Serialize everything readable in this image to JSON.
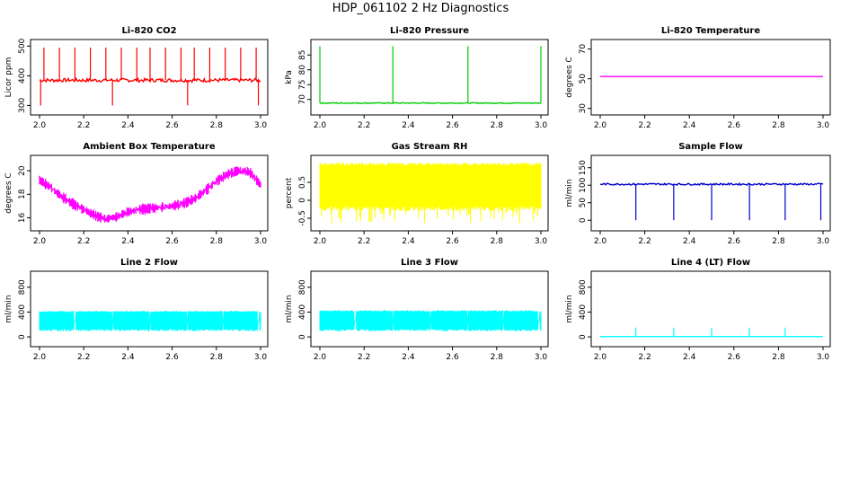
{
  "figure": {
    "title": "HDP_061102 2 Hz Diagnostics"
  },
  "chart_data": [
    {
      "type": "line",
      "title": "Li-820 CO2",
      "ylabel": "Licor ppm",
      "color": "#ff0000",
      "x_ticks": [
        "2.0",
        "2.2",
        "2.4",
        "2.6",
        "2.8",
        "3.0"
      ],
      "xlim": [
        2.0,
        3.0
      ],
      "ylim": [
        280,
        510
      ],
      "y_ticks": [
        300,
        400,
        500
      ],
      "baseline": 385,
      "noise": 6,
      "spikes_up": [
        2.02,
        2.09,
        2.16,
        2.23,
        2.3,
        2.37,
        2.44,
        2.5,
        2.57,
        2.64,
        2.7,
        2.77,
        2.84,
        2.91,
        2.98
      ],
      "spike_up_value": 495,
      "spikes_down": [
        2.005,
        2.33,
        2.67,
        2.99
      ],
      "spike_down_value": 300
    },
    {
      "type": "line",
      "title": "Li-820 Pressure",
      "ylabel": "kPa",
      "color": "#00cc00",
      "x_ticks": [
        "2.0",
        "2.2",
        "2.4",
        "2.6",
        "2.8",
        "3.0"
      ],
      "xlim": [
        2.0,
        3.0
      ],
      "ylim": [
        66,
        89
      ],
      "y_ticks": [
        70,
        75,
        80,
        85
      ],
      "baseline": 68.8,
      "noise": 0.15,
      "spikes_up": [
        2.0,
        2.33,
        2.67,
        3.0
      ],
      "spike_up_value": 88
    },
    {
      "type": "line",
      "title": "Li-820 Temperature",
      "ylabel": "degrees C",
      "color": "#ff00ff",
      "x_ticks": [
        "2.0",
        "2.2",
        "2.4",
        "2.6",
        "2.8",
        "3.0"
      ],
      "xlim": [
        2.0,
        3.0
      ],
      "ylim": [
        28,
        74
      ],
      "y_ticks": [
        30,
        50,
        70
      ],
      "baseline": 51.5,
      "noise": 0
    },
    {
      "type": "line",
      "title": "Ambient Box Temperature",
      "ylabel": "degrees C",
      "color": "#ff00ff",
      "x_ticks": [
        "2.0",
        "2.2",
        "2.4",
        "2.6",
        "2.8",
        "3.0"
      ],
      "xlim": [
        2.0,
        3.0
      ],
      "ylim": [
        15.2,
        21
      ],
      "y_ticks": [
        16,
        18,
        20
      ],
      "curve_x": [
        2.0,
        2.05,
        2.1,
        2.15,
        2.2,
        2.25,
        2.3,
        2.35,
        2.4,
        2.45,
        2.5,
        2.55,
        2.6,
        2.65,
        2.7,
        2.75,
        2.8,
        2.85,
        2.9,
        2.95,
        3.0
      ],
      "curve_y": [
        19.2,
        18.6,
        17.8,
        17.2,
        16.7,
        16.2,
        15.9,
        16.1,
        16.5,
        16.7,
        16.8,
        16.9,
        17.0,
        17.2,
        17.6,
        18.3,
        19.1,
        19.7,
        20.0,
        19.9,
        18.8
      ],
      "band": 0.45
    },
    {
      "type": "line",
      "title": "Gas Stream RH",
      "ylabel": "percent",
      "color": "#ffff00",
      "x_ticks": [
        "2.0",
        "2.2",
        "2.4",
        "2.6",
        "2.8",
        "3.0"
      ],
      "xlim": [
        2.0,
        3.0
      ],
      "ylim": [
        -0.75,
        1.15
      ],
      "y_ticks": [
        -0.5,
        0.0,
        0.5
      ],
      "band_low": -0.3,
      "band_high": 1.05,
      "spike_low": -0.65
    },
    {
      "type": "line",
      "title": "Sample Flow",
      "ylabel": "ml/min",
      "color": "#0000cc",
      "x_ticks": [
        "2.0",
        "2.2",
        "2.4",
        "2.6",
        "2.8",
        "3.0"
      ],
      "xlim": [
        2.0,
        3.0
      ],
      "ylim": [
        -20,
        175
      ],
      "y_ticks": [
        0,
        50,
        100,
        150
      ],
      "baseline": 103,
      "noise": 2.5,
      "spikes_down": [
        2.16,
        2.33,
        2.5,
        2.67,
        2.83,
        2.99
      ],
      "spike_down_value": 0
    },
    {
      "type": "line",
      "title": "Line 2 Flow",
      "ylabel": "ml/min",
      "color": "#00ffff",
      "x_ticks": [
        "2.0",
        "2.2",
        "2.4",
        "2.6",
        "2.8",
        "3.0"
      ],
      "xlim": [
        2.0,
        3.0
      ],
      "ylim": [
        -100,
        1000
      ],
      "y_ticks": [
        0,
        400,
        800
      ],
      "band_low": 90,
      "band_high": 420,
      "gaps": [
        2.16,
        2.33,
        2.5,
        2.67,
        2.83,
        2.99
      ]
    },
    {
      "type": "line",
      "title": "Line 3 Flow",
      "ylabel": "ml/min",
      "color": "#00ffff",
      "x_ticks": [
        "2.0",
        "2.2",
        "2.4",
        "2.6",
        "2.8",
        "3.0"
      ],
      "xlim": [
        2.0,
        3.0
      ],
      "ylim": [
        -100,
        1000
      ],
      "y_ticks": [
        0,
        400,
        800
      ],
      "band_low": 90,
      "band_high": 430,
      "gaps": [
        2.16,
        2.33,
        2.5,
        2.67,
        2.83,
        2.99
      ]
    },
    {
      "type": "line",
      "title": "Line 4 (LT) Flow",
      "ylabel": "ml/min",
      "color": "#00ffff",
      "x_ticks": [
        "2.0",
        "2.2",
        "2.4",
        "2.6",
        "2.8",
        "3.0"
      ],
      "xlim": [
        2.0,
        3.0
      ],
      "ylim": [
        -100,
        1000
      ],
      "y_ticks": [
        0,
        400,
        800
      ],
      "baseline": 5,
      "noise": 0,
      "spikes_up": [
        2.16,
        2.33,
        2.5,
        2.67,
        2.83
      ],
      "spike_up_value": 150
    }
  ]
}
